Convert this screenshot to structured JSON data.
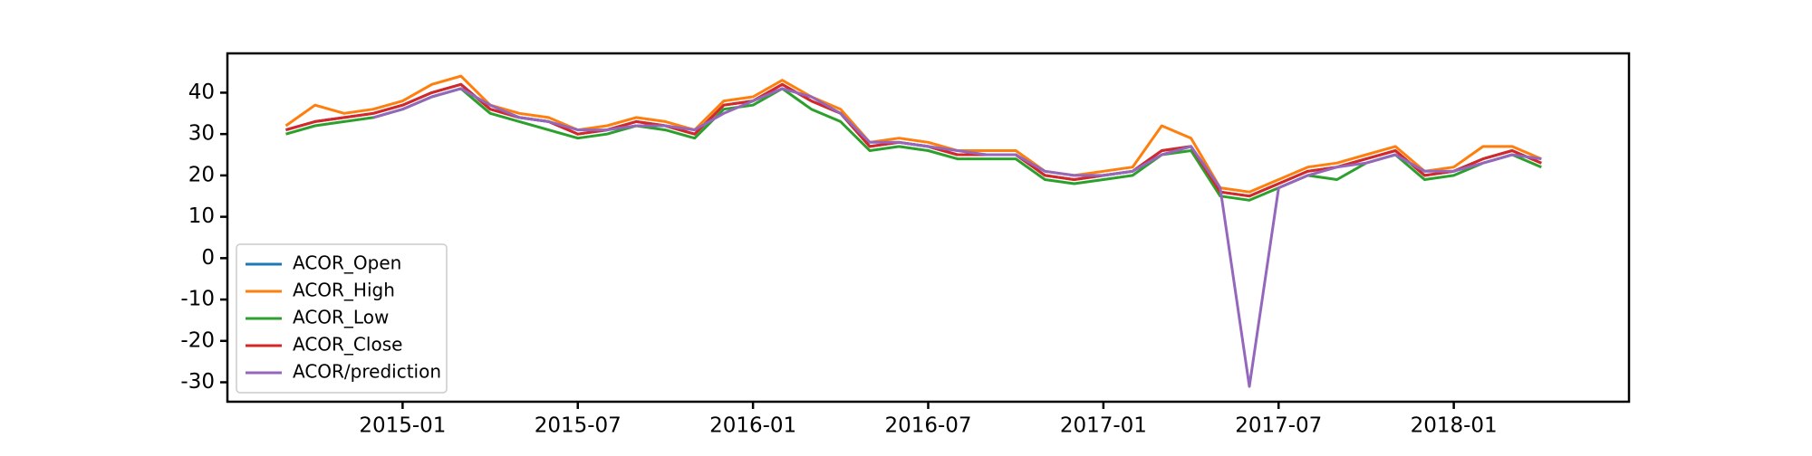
{
  "chart_data": {
    "type": "line",
    "x": [
      "2014-09",
      "2014-10",
      "2014-11",
      "2014-12",
      "2015-01",
      "2015-02",
      "2015-03",
      "2015-04",
      "2015-05",
      "2015-06",
      "2015-07",
      "2015-08",
      "2015-09",
      "2015-10",
      "2015-11",
      "2015-12",
      "2016-01",
      "2016-02",
      "2016-03",
      "2016-04",
      "2016-05",
      "2016-06",
      "2016-07",
      "2016-08",
      "2016-09",
      "2016-10",
      "2016-11",
      "2016-12",
      "2017-01",
      "2017-02",
      "2017-03",
      "2017-04",
      "2017-05",
      "2017-06",
      "2017-07",
      "2017-08",
      "2017-09",
      "2017-10",
      "2017-11",
      "2017-12",
      "2018-01",
      "2018-02",
      "2018-03",
      "2018-04"
    ],
    "series": [
      {
        "name": "ACOR_Open",
        "color": "#1f77b4",
        "values": [
          31,
          33,
          34,
          35,
          37,
          40,
          42,
          36,
          34,
          33,
          30,
          31,
          33,
          32,
          30,
          37,
          38,
          42,
          38,
          35,
          27,
          28,
          27,
          25,
          25,
          25,
          20,
          19,
          20,
          21,
          26,
          27,
          16,
          15,
          18,
          21,
          22,
          24,
          26,
          20,
          21,
          24,
          26,
          23
        ]
      },
      {
        "name": "ACOR_High",
        "color": "#ff7f0e",
        "values": [
          32,
          37,
          35,
          36,
          38,
          42,
          44,
          37,
          35,
          34,
          31,
          32,
          34,
          33,
          31,
          38,
          39,
          43,
          39,
          36,
          28,
          29,
          28,
          26,
          26,
          26,
          21,
          20,
          21,
          22,
          32,
          29,
          17,
          16,
          19,
          22,
          23,
          25,
          27,
          21,
          22,
          27,
          27,
          24
        ]
      },
      {
        "name": "ACOR_Low",
        "color": "#2ca02c",
        "values": [
          30,
          32,
          33,
          34,
          36,
          39,
          41,
          35,
          33,
          31,
          29,
          30,
          32,
          31,
          29,
          36,
          37,
          41,
          36,
          33,
          26,
          27,
          26,
          24,
          24,
          24,
          19,
          18,
          19,
          20,
          25,
          26,
          15,
          14,
          17,
          20,
          19,
          23,
          25,
          19,
          20,
          23,
          25,
          22
        ]
      },
      {
        "name": "ACOR_Close",
        "color": "#d62728",
        "values": [
          31,
          33,
          34,
          35,
          37,
          40,
          42,
          36,
          34,
          33,
          30,
          31,
          33,
          32,
          30,
          37,
          38,
          42,
          38,
          35,
          27,
          28,
          27,
          25,
          25,
          25,
          20,
          19,
          20,
          21,
          26,
          27,
          16,
          15,
          18,
          21,
          22,
          24,
          26,
          20,
          21,
          24,
          26,
          23
        ]
      },
      {
        "name": "ACOR/prediction",
        "color": "#9467bd",
        "values": [
          null,
          null,
          null,
          34,
          36,
          39,
          41,
          37,
          34,
          33,
          31,
          31,
          32,
          32,
          31,
          35,
          38,
          41,
          39,
          35,
          28,
          28,
          27,
          26,
          25,
          25,
          21,
          20,
          20,
          21,
          25,
          27,
          17,
          -31,
          17,
          20,
          22,
          23,
          25,
          21,
          21,
          23,
          25,
          24
        ]
      }
    ],
    "xlim": [
      "2014-07",
      "2018-07"
    ],
    "xticks": [
      "2015-01",
      "2015-07",
      "2016-01",
      "2016-07",
      "2017-01",
      "2017-07",
      "2018-01"
    ],
    "ylim": [
      -34.7,
      49.5
    ],
    "yticks": [
      -30,
      -20,
      -10,
      0,
      10,
      20,
      30,
      40
    ],
    "legend": "lower left"
  }
}
